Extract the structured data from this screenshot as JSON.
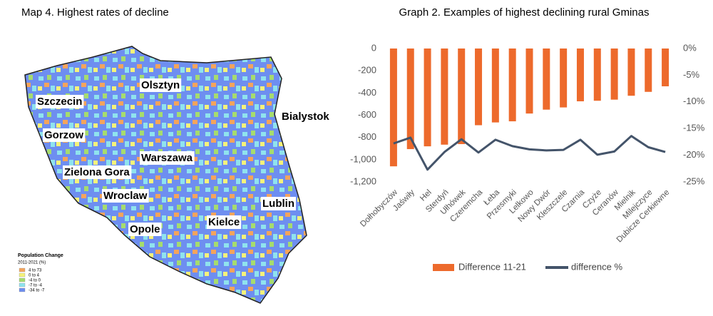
{
  "map": {
    "title": "Map 4. Highest rates of decline",
    "cities": [
      "Szczecin",
      "Olsztyn",
      "Bialystok",
      "Gorzow",
      "Warszawa",
      "Zielona Gora",
      "Wroclaw",
      "Lublin",
      "Kielce",
      "Opole"
    ],
    "legend": {
      "title": "Population Change",
      "subtitle": "2011-2021 (%)",
      "items": [
        {
          "label": "4 to 73",
          "color": "#f4a45c"
        },
        {
          "label": "0 to 4",
          "color": "#f5f27a"
        },
        {
          "label": "-4 to 0",
          "color": "#a6dc6e"
        },
        {
          "label": "-7 to -4",
          "color": "#8fe3ee"
        },
        {
          "label": "-34 to -7",
          "color": "#6e8ef0"
        }
      ]
    }
  },
  "chart_data": {
    "type": "bar-line",
    "title": "Graph 2. Examples of highest declining rural Gminas",
    "categories": [
      "Dołhobyczów",
      "Jaświły",
      "Hel",
      "Sterdyń",
      "Ułhówek",
      "Czeremcha",
      "Łeba",
      "Przesmyki",
      "Lelkowo",
      "Nowy Dwór",
      "Kleszczele",
      "Czarnia",
      "Czyże",
      "Ceranów",
      "Mielnik",
      "Milejczyce",
      "Dubicze Cerkiewne"
    ],
    "series": [
      {
        "name": "Difference 11-21",
        "color": "#ed6a2c",
        "type": "bar",
        "values": [
          -1060,
          -905,
          -880,
          -865,
          -860,
          -690,
          -665,
          -655,
          -585,
          -550,
          -530,
          -475,
          -470,
          -460,
          -425,
          -390,
          -340
        ]
      },
      {
        "name": "difference %",
        "color": "#44546a",
        "type": "line",
        "axis": "y2",
        "values": [
          -17.8,
          -16.7,
          -22.7,
          -19.4,
          -17.0,
          -19.5,
          -17.1,
          -18.3,
          -18.9,
          -19.1,
          -19.0,
          -17.1,
          -19.9,
          -19.3,
          -16.4,
          -18.5,
          -19.4
        ]
      }
    ],
    "ylim": [
      -1200,
      0
    ],
    "yticks": [
      0,
      -200,
      -400,
      -600,
      -800,
      {
        "value": -1000,
        "label": "-1,000"
      },
      {
        "value": -1200,
        "label": "-1,200"
      }
    ],
    "y2lim": [
      -25,
      0
    ],
    "y2ticks": [
      {
        "value": 0,
        "label": "0%"
      },
      {
        "value": -5,
        "label": "-5%"
      },
      {
        "value": -10,
        "label": "-10%"
      },
      {
        "value": -15,
        "label": "-15%"
      },
      {
        "value": -20,
        "label": "-20%"
      },
      {
        "value": -25,
        "label": "-25%"
      }
    ],
    "legend": "bottom"
  }
}
